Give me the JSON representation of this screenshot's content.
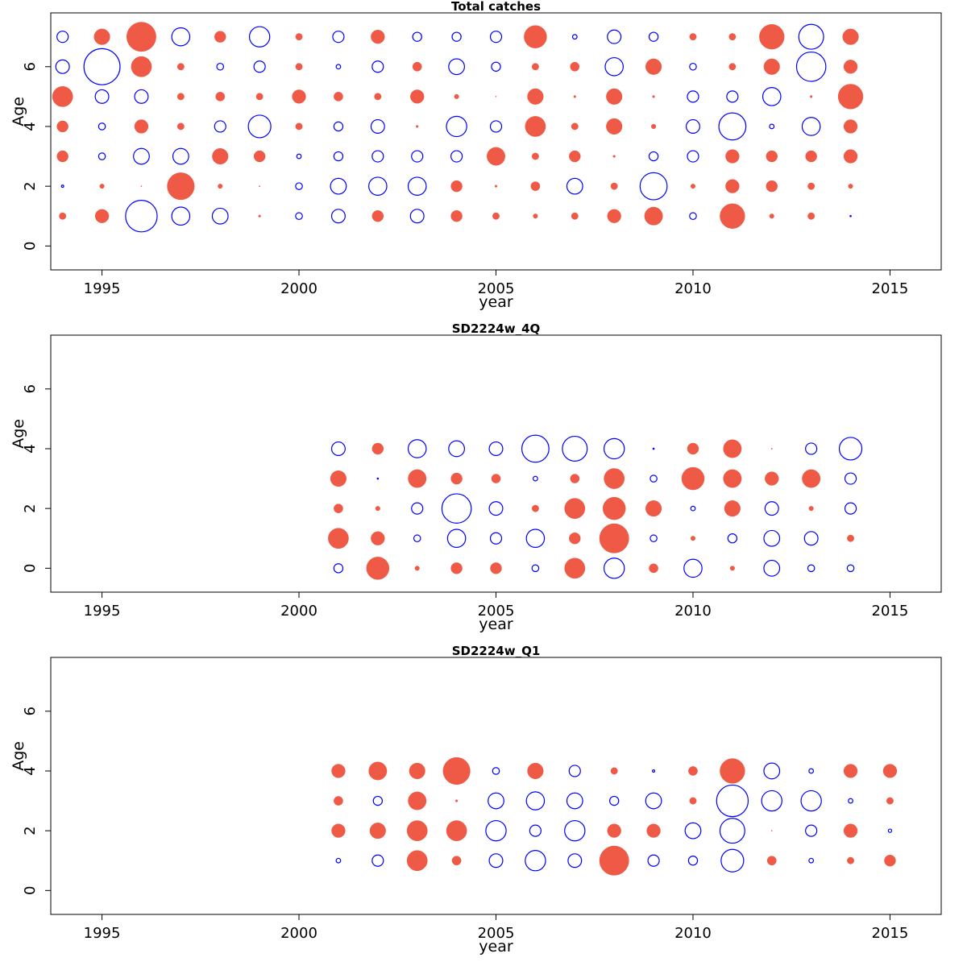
{
  "chart_data": [
    {
      "type": "scatter",
      "title": "Total catches",
      "xlabel": "year",
      "ylabel": "Age",
      "xlim": [
        1993.7,
        2016.3
      ],
      "ylim": [
        -0.8,
        7.8
      ],
      "xticks": [
        1995,
        2000,
        2005,
        2010,
        2015
      ],
      "yticks": [
        0,
        2,
        4,
        6
      ],
      "grid": false,
      "colors": {
        "positive": "#EE5A45",
        "negative": "#0000FF"
      },
      "encoding": "bubble radius proportional to |value|; filled red = positive residual, open blue = negative residual",
      "years": [
        1994,
        1995,
        1996,
        1997,
        1998,
        1999,
        2000,
        2001,
        2002,
        2003,
        2004,
        2005,
        2006,
        2007,
        2008,
        2009,
        2010,
        2011,
        2012,
        2013,
        2014
      ],
      "rows": [
        {
          "age": 7,
          "values": [
            -0.5,
            0.7,
            1.3,
            -0.8,
            0.5,
            -0.9,
            0.3,
            -0.5,
            0.6,
            -0.4,
            -0.4,
            -0.5,
            1.0,
            -0.2,
            -0.6,
            -0.4,
            0.3,
            0.3,
            1.1,
            -1.1,
            0.7
          ]
        },
        {
          "age": 6,
          "values": [
            -0.6,
            -1.6,
            0.9,
            0.3,
            -0.3,
            -0.5,
            0.3,
            -0.2,
            -0.5,
            0.4,
            -0.7,
            -0.4,
            0.3,
            0.4,
            -0.8,
            0.7,
            -0.3,
            0.3,
            0.7,
            -1.3,
            0.6
          ]
        },
        {
          "age": 5,
          "values": [
            0.9,
            -0.6,
            -0.6,
            0.3,
            0.4,
            0.3,
            0.6,
            0.4,
            0.3,
            0.6,
            0.2,
            0.0,
            0.7,
            0.1,
            0.7,
            0.1,
            -0.5,
            -0.5,
            -0.8,
            0.1,
            1.1
          ]
        },
        {
          "age": 4,
          "values": [
            0.5,
            -0.3,
            0.6,
            0.3,
            -0.5,
            -1.0,
            0.3,
            -0.4,
            -0.6,
            0.1,
            -0.9,
            -0.5,
            0.9,
            0.3,
            0.7,
            0.2,
            -0.6,
            -1.2,
            -0.2,
            -0.8,
            0.6
          ]
        },
        {
          "age": 3,
          "values": [
            0.5,
            -0.3,
            -0.7,
            -0.7,
            0.7,
            0.5,
            -0.2,
            -0.4,
            -0.5,
            -0.5,
            -0.5,
            0.8,
            0.3,
            0.5,
            0.1,
            -0.4,
            -0.5,
            0.6,
            0.5,
            0.5,
            0.6
          ]
        },
        {
          "age": 2,
          "values": [
            -0.1,
            0.2,
            0.0,
            1.2,
            0.2,
            0.05,
            -0.3,
            -0.7,
            -0.8,
            -0.8,
            0.5,
            0.1,
            0.4,
            -0.7,
            0.3,
            -1.2,
            0.2,
            0.6,
            0.5,
            0.3,
            0.2
          ]
        },
        {
          "age": 1,
          "values": [
            0.3,
            0.6,
            -1.4,
            -0.8,
            -0.7,
            0.1,
            -0.3,
            -0.6,
            0.5,
            -0.6,
            0.5,
            0.3,
            0.2,
            0.3,
            0.6,
            0.8,
            -0.3,
            1.1,
            0.2,
            0.3,
            -0.05
          ]
        }
      ]
    },
    {
      "type": "scatter",
      "title": "SD2224w_4Q",
      "xlabel": "year",
      "ylabel": "Age",
      "xlim": [
        1993.7,
        2016.3
      ],
      "ylim": [
        -0.8,
        7.8
      ],
      "xticks": [
        1995,
        2000,
        2005,
        2010,
        2015
      ],
      "yticks": [
        0,
        2,
        4,
        6
      ],
      "grid": false,
      "colors": {
        "positive": "#EE5A45",
        "negative": "#0000FF"
      },
      "encoding": "bubble radius proportional to |value|; filled red = positive residual, open blue = negative residual",
      "years": [
        2001,
        2002,
        2003,
        2004,
        2005,
        2006,
        2007,
        2008,
        2009,
        2010,
        2011,
        2012,
        2013,
        2014
      ],
      "rows": [
        {
          "age": 4,
          "values": [
            -0.6,
            0.5,
            -0.8,
            -0.7,
            -0.6,
            -1.2,
            -1.1,
            -0.9,
            -0.05,
            0.5,
            0.8,
            0.05,
            -0.5,
            -1.0
          ]
        },
        {
          "age": 3,
          "values": [
            0.7,
            -0.05,
            0.8,
            0.5,
            0.4,
            -0.2,
            0.4,
            0.9,
            -0.3,
            1.0,
            0.8,
            0.6,
            0.8,
            -0.5
          ]
        },
        {
          "age": 2,
          "values": [
            0.4,
            0.2,
            -0.5,
            -1.3,
            -0.6,
            0.3,
            0.9,
            1.0,
            0.7,
            -0.2,
            0.7,
            -0.6,
            0.2,
            -0.5
          ]
        },
        {
          "age": 1,
          "values": [
            0.9,
            0.6,
            -0.3,
            -0.8,
            -0.5,
            -0.8,
            0.5,
            1.3,
            -0.3,
            0.2,
            -0.4,
            -0.7,
            -0.6,
            0.3
          ]
        },
        {
          "age": 0,
          "values": [
            -0.4,
            1.0,
            0.2,
            0.5,
            0.5,
            -0.3,
            0.9,
            -0.9,
            0.4,
            -0.8,
            0.2,
            -0.7,
            -0.3,
            -0.3
          ]
        }
      ]
    },
    {
      "type": "scatter",
      "title": "SD2224w_Q1",
      "xlabel": "year",
      "ylabel": "Age",
      "xlim": [
        1993.7,
        2016.3
      ],
      "ylim": [
        -0.8,
        7.8
      ],
      "xticks": [
        1995,
        2000,
        2005,
        2010,
        2015
      ],
      "yticks": [
        0,
        2,
        4,
        6
      ],
      "grid": false,
      "colors": {
        "positive": "#EE5A45",
        "negative": "#0000FF"
      },
      "encoding": "bubble radius proportional to |value|; filled red = positive residual, open blue = negative residual",
      "years": [
        2001,
        2002,
        2003,
        2004,
        2005,
        2006,
        2007,
        2008,
        2009,
        2010,
        2011,
        2012,
        2013,
        2014,
        2015
      ],
      "rows": [
        {
          "age": 4,
          "values": [
            0.6,
            0.8,
            0.7,
            1.2,
            -0.3,
            0.7,
            -0.5,
            0.3,
            -0.1,
            0.4,
            1.1,
            -0.7,
            -0.2,
            0.6,
            0.6
          ]
        },
        {
          "age": 3,
          "values": [
            0.4,
            -0.4,
            0.8,
            0.1,
            -0.7,
            -0.8,
            -0.7,
            -0.4,
            -0.7,
            0.3,
            -1.4,
            -0.9,
            -0.9,
            -0.2,
            0.3
          ]
        },
        {
          "age": 2,
          "values": [
            0.6,
            0.7,
            0.9,
            0.9,
            -0.9,
            -0.5,
            -0.9,
            0.6,
            0.6,
            -0.7,
            -1.1,
            0.0,
            -0.5,
            0.6,
            -0.15
          ]
        },
        {
          "age": 1,
          "values": [
            -0.2,
            -0.5,
            0.9,
            0.4,
            -0.6,
            -0.9,
            -0.6,
            1.3,
            -0.5,
            -0.4,
            -1.0,
            0.4,
            -0.2,
            0.3,
            0.5
          ]
        }
      ]
    }
  ]
}
